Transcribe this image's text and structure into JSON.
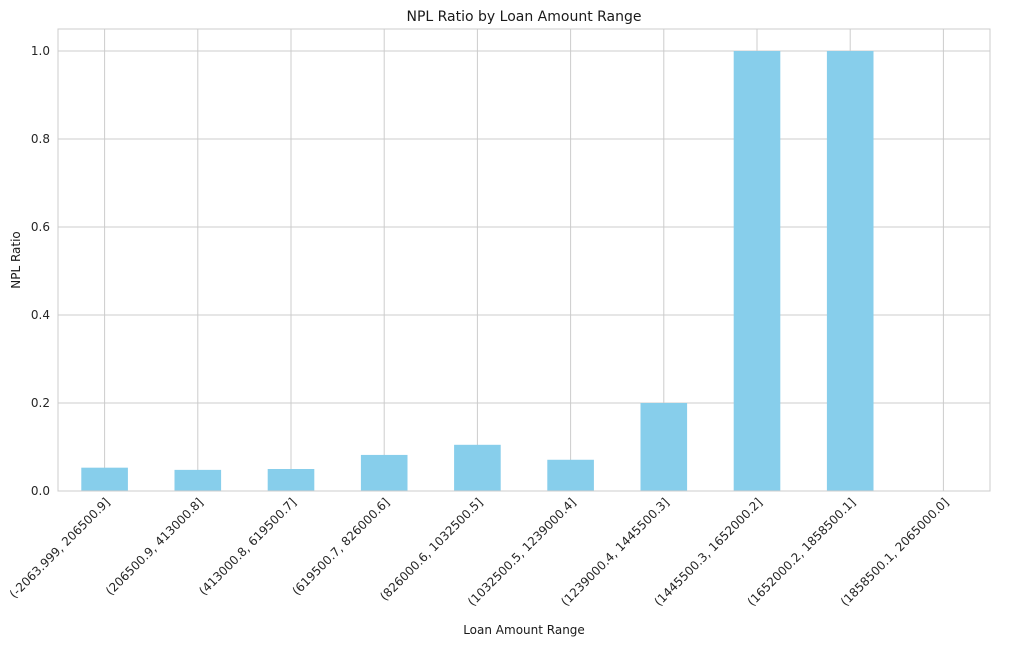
{
  "chart_data": {
    "type": "bar",
    "title": "NPL Ratio by Loan Amount Range",
    "xlabel": "Loan Amount Range",
    "ylabel": "NPL Ratio",
    "categories": [
      "(-2063.999, 206500.9]",
      "(206500.9, 413000.8]",
      "(413000.8, 619500.7]",
      "(619500.7, 826000.6]",
      "(826000.6, 1032500.5]",
      "(1032500.5, 1239000.4]",
      "(1239000.4, 1445500.3]",
      "(1445500.3, 1652000.2]",
      "(1652000.2, 1858500.1]",
      "(1858500.1, 2065000.0]"
    ],
    "values": [
      0.053,
      0.048,
      0.05,
      0.082,
      0.105,
      0.071,
      0.2,
      1.0,
      1.0,
      0.0
    ],
    "ylim": [
      0,
      1.05
    ],
    "yticks": [
      "0.0",
      "0.2",
      "0.4",
      "0.6",
      "0.8",
      "1.0"
    ],
    "grid": true,
    "bar_color": "#87ceeb"
  }
}
